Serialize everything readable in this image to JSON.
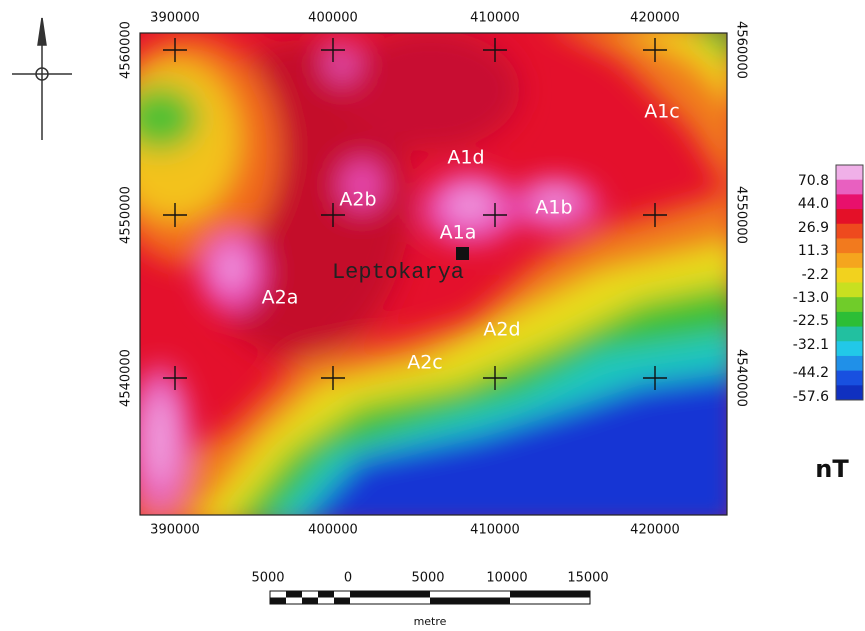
{
  "axes": {
    "top": [
      390000,
      400000,
      410000,
      420000
    ],
    "bottom": [
      390000,
      400000,
      410000,
      420000
    ],
    "left": [
      4560000,
      4550000,
      4540000
    ],
    "right": [
      4560000,
      4550000,
      4540000
    ]
  },
  "anomalies": [
    "A1c",
    "A1d",
    "A2b",
    "A1b",
    "A1a",
    "A2a",
    "A2d",
    "A2c"
  ],
  "place": "Leptokarya",
  "legend": {
    "labels": [
      "70.8",
      "44.0",
      "26.9",
      "11.3",
      "-2.2",
      "-13.0",
      "-22.5",
      "-32.1",
      "-44.2",
      "-57.6"
    ],
    "unit": "nT"
  },
  "scale": {
    "labels": [
      5000,
      0,
      5000,
      10000,
      15000
    ],
    "unit": "metre"
  }
}
